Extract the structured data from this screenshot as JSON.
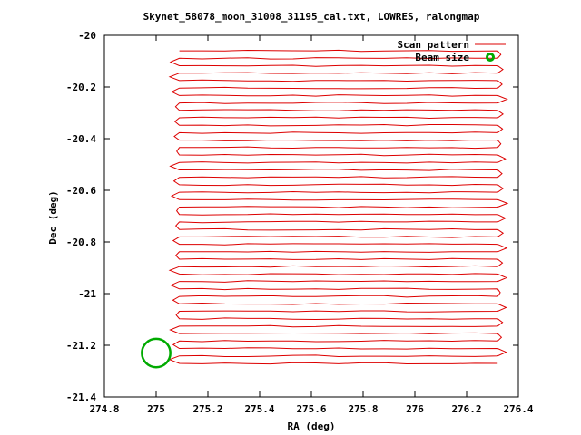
{
  "chart_data": {
    "type": "line",
    "title": "Skynet_58078_moon_31008_31195_cal.txt, LOWRES, ralongmap",
    "xlabel": "RA (deg)",
    "ylabel": "Dec (deg)",
    "xlim": [
      274.8,
      276.4
    ],
    "ylim": [
      -21.4,
      -20.0
    ],
    "xticks": [
      "274.8",
      "275",
      "275.2",
      "275.4",
      "275.6",
      "275.8",
      "276",
      "276.2",
      "276.4"
    ],
    "yticks": [
      "-20",
      "-20.2",
      "-20.4",
      "-20.6",
      "-20.8",
      "-21",
      "-21.2",
      "-21.4"
    ],
    "grid": false,
    "legend_position": "top-right",
    "series": [
      {
        "name": "Scan pattern",
        "color": "#dd0000",
        "style": "raster scan lines",
        "ra_start": 275.09,
        "ra_end": 276.32,
        "dec_top": -20.06,
        "dec_bottom": -21.27,
        "num_rows": 43
      },
      {
        "name": "Beam size",
        "color": "#00aa00",
        "style": "circle",
        "center_ra": 275.0,
        "center_dec": -21.23,
        "radius_deg": 0.055
      }
    ]
  },
  "legend": {
    "scan_label": "Scan pattern",
    "beam_label": "Beam size"
  }
}
